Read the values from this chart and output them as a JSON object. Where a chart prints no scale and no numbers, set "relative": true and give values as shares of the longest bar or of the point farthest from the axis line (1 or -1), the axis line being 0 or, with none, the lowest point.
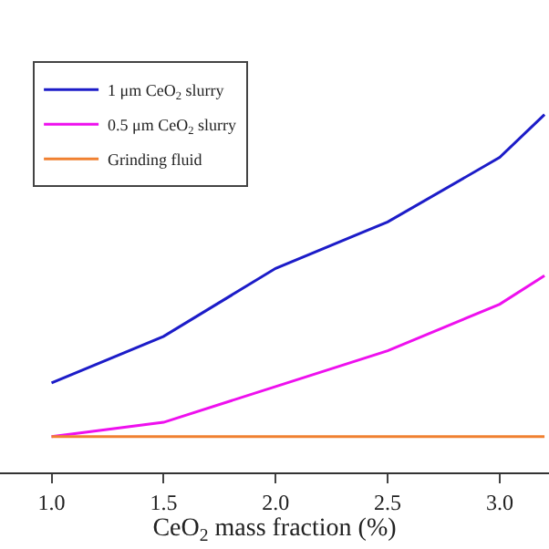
{
  "chart_data": {
    "type": "line",
    "relative": true,
    "xlabel": "CeO$_{2}$ mass fraction (%)",
    "x": [
      1.0,
      1.5,
      2.0,
      2.5,
      3.0,
      3.2
    ],
    "xlim": [
      0.77,
      3.22
    ],
    "xticks": [
      {
        "value": 1.0,
        "label": "1.0"
      },
      {
        "value": 1.5,
        "label": "1.5"
      },
      {
        "value": 2.0,
        "label": "2.0"
      },
      {
        "value": 2.5,
        "label": "2.5"
      },
      {
        "value": 3.0,
        "label": "3.0"
      }
    ],
    "series": [
      {
        "name": "1 μm CeO$_{2}$ slurry",
        "color": "#1c1cc8",
        "values": [
          0.25,
          0.38,
          0.57,
          0.7,
          0.88,
          1.0
        ]
      },
      {
        "name": "0.5 μm CeO$_{2}$ slurry",
        "color": "#ee10ee",
        "values": [
          0.1,
          0.14,
          0.24,
          0.34,
          0.47,
          0.55
        ]
      },
      {
        "name": "Grinding fluid",
        "color": "#f08030",
        "values": [
          0.1,
          0.1,
          0.1,
          0.1,
          0.1,
          0.1
        ]
      }
    ],
    "legend": "top left",
    "line_style": "solid"
  }
}
